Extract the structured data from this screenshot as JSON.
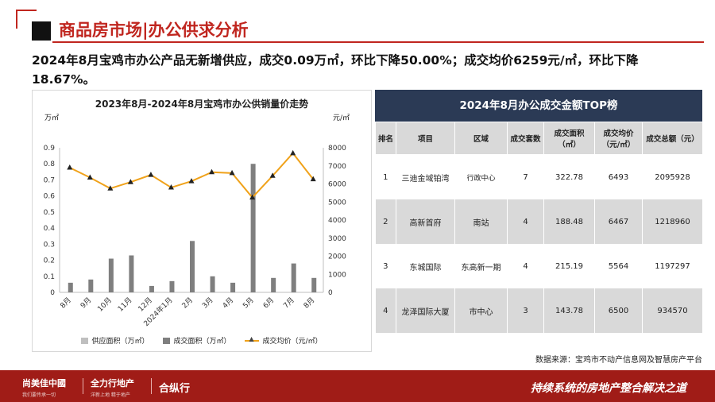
{
  "header": {
    "title": "商品房市场|办公供求分析"
  },
  "summary": "2024年8月宝鸡市办公产品无新增供应，成交0.09万㎡，环比下降50.00%；成交均价6259元/㎡，环比下降18.67%。",
  "chart_data": {
    "type": "bar",
    "title": "2023年8月-2024年8月宝鸡市办公供销量价走势",
    "y_unit_left": "万㎡",
    "y_unit_right": "元/㎡",
    "categories": [
      "8月",
      "9月",
      "10月",
      "11月",
      "12月",
      "2024年1月",
      "2月",
      "3月",
      "4月",
      "5月",
      "6月",
      "7月",
      "8月"
    ],
    "series": [
      {
        "name": "供应面积（万㎡）",
        "kind": "bar",
        "axis": "left",
        "color": "#bfbfbf",
        "values": [
          0,
          0,
          0,
          0,
          0,
          0,
          0,
          0,
          0,
          0,
          0,
          0,
          0
        ]
      },
      {
        "name": "成交面积（万㎡）",
        "kind": "bar",
        "axis": "left",
        "color": "#7f7f7f",
        "values": [
          0.06,
          0.08,
          0.21,
          0.23,
          0.04,
          0.07,
          0.32,
          0.1,
          0.06,
          0.8,
          0.09,
          0.18,
          0.09
        ]
      },
      {
        "name": "成交均价（元/㎡）",
        "kind": "line",
        "axis": "right",
        "color": "#f0a21a",
        "values": [
          6900,
          6350,
          5750,
          6100,
          6500,
          5800,
          6150,
          6650,
          6600,
          5250,
          6450,
          7700,
          6259
        ]
      }
    ],
    "ylim_left": [
      0,
      0.9
    ],
    "yticks_left": [
      "0",
      "0.1",
      "0.2",
      "0.3",
      "0.4",
      "0.5",
      "0.6",
      "0.7",
      "0.8",
      "0.9"
    ],
    "ylim_right": [
      0,
      8000
    ],
    "yticks_right": [
      "0",
      "1000",
      "2000",
      "3000",
      "4000",
      "5000",
      "6000",
      "7000",
      "8000"
    ],
    "legend_position": "bottom"
  },
  "table": {
    "title": "2024年8月办公成交金额TOP榜",
    "headers": [
      "排名",
      "项目",
      "区域",
      "成交套数",
      "成交面积（㎡）",
      "成交均价（元/㎡）",
      "成交总额（元）"
    ],
    "rows": [
      [
        "1",
        "三迪金域铂湾",
        "行政中心",
        "7",
        "322.78",
        "6493",
        "2095928"
      ],
      [
        "2",
        "高新首府",
        "南站",
        "4",
        "188.48",
        "6467",
        "1218960"
      ],
      [
        "3",
        "东城国际",
        "东高新一期",
        "4",
        "215.19",
        "5564",
        "1197297"
      ],
      [
        "4",
        "龙泽国际大厦",
        "市中心",
        "3",
        "143.78",
        "6500",
        "934570"
      ]
    ]
  },
  "source": "数据来源：宝鸡市不动产信息网及智慧房产平台",
  "footer": {
    "brand1": "尚美佳中國",
    "brand1_sub": "我们要传承一切",
    "brand2": "全力行地产",
    "brand2_sub": "洋新上地 精于地产",
    "brand3": "合纵行",
    "tagline": "持续系统的房地产整合解决之道"
  },
  "colors": {
    "accent": "#c0261f",
    "table_header": "#2b3a55",
    "footer": "#a01c17"
  }
}
